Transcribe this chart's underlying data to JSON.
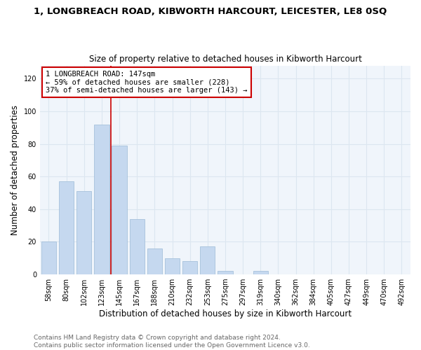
{
  "title": "1, LONGBREACH ROAD, KIBWORTH HARCOURT, LEICESTER, LE8 0SQ",
  "subtitle": "Size of property relative to detached houses in Kibworth Harcourt",
  "xlabel": "Distribution of detached houses by size in Kibworth Harcourt",
  "ylabel": "Number of detached properties",
  "footnote1": "Contains HM Land Registry data © Crown copyright and database right 2024.",
  "footnote2": "Contains public sector information licensed under the Open Government Licence v3.0.",
  "categories": [
    "58sqm",
    "80sqm",
    "102sqm",
    "123sqm",
    "145sqm",
    "167sqm",
    "188sqm",
    "210sqm",
    "232sqm",
    "253sqm",
    "275sqm",
    "297sqm",
    "319sqm",
    "340sqm",
    "362sqm",
    "384sqm",
    "405sqm",
    "427sqm",
    "449sqm",
    "470sqm",
    "492sqm"
  ],
  "values": [
    20,
    57,
    51,
    92,
    79,
    34,
    16,
    10,
    8,
    17,
    2,
    0,
    2,
    0,
    0,
    0,
    0,
    0,
    0,
    0,
    0
  ],
  "bar_color": "#c5d8ef",
  "bar_edge_color": "#9bbad6",
  "vline_color": "#cc0000",
  "vline_x": 4,
  "annotation_box_text": "1 LONGBREACH ROAD: 147sqm\n← 59% of detached houses are smaller (228)\n37% of semi-detached houses are larger (143) →",
  "annotation_box_edge_color": "#cc0000",
  "ylim": [
    0,
    128
  ],
  "yticks": [
    0,
    20,
    40,
    60,
    80,
    100,
    120
  ],
  "grid_color": "#dce6f0",
  "bg_color": "#f0f5fb",
  "title_fontsize": 9.5,
  "subtitle_fontsize": 8.5,
  "xlabel_fontsize": 8.5,
  "ylabel_fontsize": 8.5,
  "tick_fontsize": 7,
  "annotation_fontsize": 7.5,
  "footnote_fontsize": 6.5
}
